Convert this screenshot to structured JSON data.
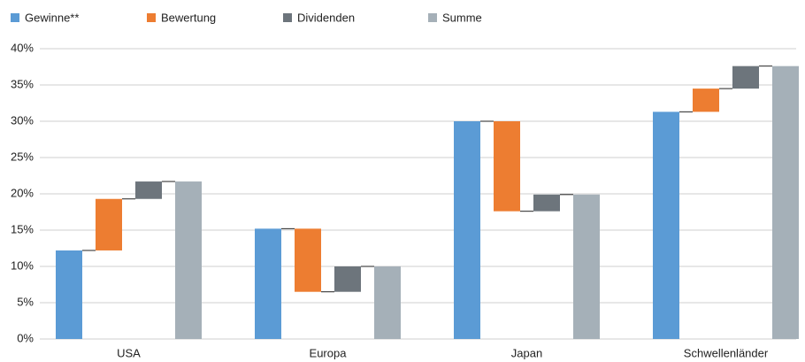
{
  "chart_data": {
    "type": "waterfall",
    "categories": [
      "USA",
      "Europa",
      "Japan",
      "Schwellenländer"
    ],
    "series": [
      {
        "name": "Gewinne**",
        "color": "#5b9bd5",
        "values": [
          12.2,
          15.2,
          30.0,
          31.3
        ]
      },
      {
        "name": "Bewertung",
        "color": "#ed7d31",
        "values": [
          7.1,
          -8.7,
          -12.4,
          3.2
        ]
      },
      {
        "name": "Dividenden",
        "color": "#6d757c",
        "values": [
          2.4,
          3.5,
          2.3,
          3.1
        ]
      },
      {
        "name": "Summe",
        "color": "#a5b0b8",
        "values": [
          21.7,
          10.0,
          19.9,
          37.6
        ]
      }
    ],
    "ylim": [
      0,
      40
    ],
    "yticks": [
      {
        "value": 0,
        "label": "0%"
      },
      {
        "value": 5,
        "label": "5%"
      },
      {
        "value": 10,
        "label": "10%"
      },
      {
        "value": 15,
        "label": "15%"
      },
      {
        "value": 20,
        "label": "20%"
      },
      {
        "value": 25,
        "label": "25%"
      },
      {
        "value": 30,
        "label": "30%"
      },
      {
        "value": 35,
        "label": "35%"
      },
      {
        "value": 40,
        "label": "40%"
      }
    ],
    "grid": true
  }
}
